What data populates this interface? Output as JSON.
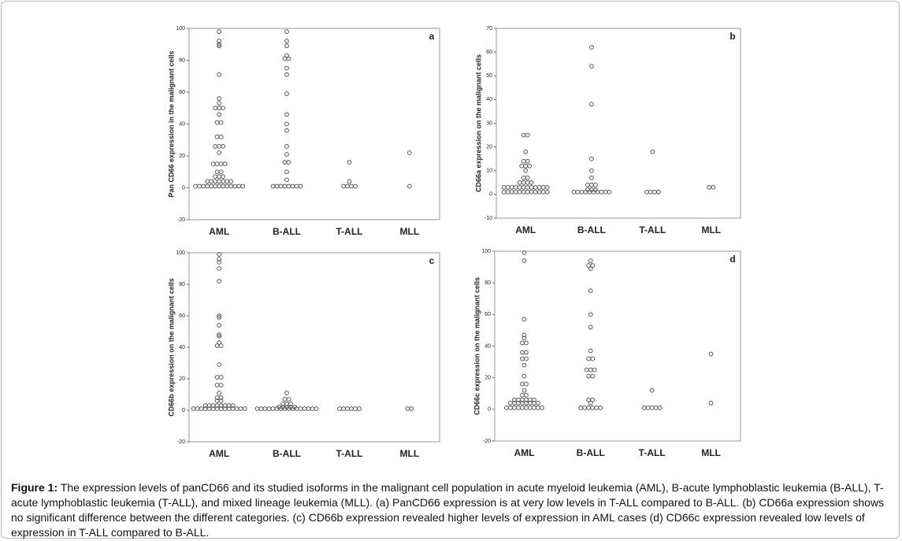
{
  "chart_data": [
    {
      "type": "dotplot",
      "panel": "a",
      "ylabel": "Pan CD66 expression in the malignant cells",
      "categories": [
        "AML",
        "B-ALL",
        "T-ALL",
        "MLL"
      ],
      "color": "#555555",
      "ylim": [
        -20,
        100
      ],
      "yticks": [
        -20,
        0,
        20,
        40,
        60,
        80,
        100
      ],
      "values": [
        [
          98,
          92,
          90,
          89,
          71,
          56,
          53,
          50,
          50,
          50,
          46,
          41,
          41,
          32,
          32,
          26,
          26,
          26,
          22,
          15,
          15,
          15,
          15,
          10,
          10,
          7,
          7,
          7,
          4,
          4,
          4,
          4,
          4,
          4,
          4,
          1,
          1,
          1,
          1,
          1,
          1,
          1,
          1,
          1,
          1,
          1,
          1,
          1
        ],
        [
          98,
          92,
          89,
          83,
          81,
          81,
          75,
          71,
          59,
          46,
          40,
          36,
          26,
          21,
          16,
          16,
          10,
          5,
          1,
          1,
          1,
          1,
          1,
          1,
          1,
          1
        ],
        [
          16,
          4,
          1,
          1,
          1,
          1
        ],
        [
          22,
          1
        ]
      ]
    },
    {
      "type": "dotplot",
      "panel": "b",
      "ylabel": "CD66a expression on the malignant cells",
      "categories": [
        "AML",
        "B-ALL",
        "T-ALL",
        "MLL"
      ],
      "color": "#555555",
      "ylim": [
        -10,
        70
      ],
      "yticks": [
        -10,
        0,
        10,
        20,
        30,
        40,
        50,
        60,
        70
      ],
      "values": [
        [
          25,
          25,
          18,
          14,
          14,
          12,
          12,
          12,
          10,
          7,
          7,
          5,
          5,
          5,
          5,
          3,
          3,
          3,
          3,
          3,
          3,
          3,
          3,
          3,
          3,
          3,
          3,
          1,
          1,
          1,
          1,
          1,
          1,
          1,
          1,
          1,
          1,
          1,
          1
        ],
        [
          62,
          54,
          38,
          15,
          10,
          7,
          4,
          4,
          4,
          2,
          2,
          2,
          1,
          1,
          1,
          1,
          1,
          1,
          1,
          1,
          1,
          1
        ],
        [
          18,
          1,
          1,
          1,
          1
        ],
        [
          3,
          3
        ]
      ]
    },
    {
      "type": "dotplot",
      "panel": "c",
      "ylabel": "CD66b expression on the malignant cells",
      "categories": [
        "AML",
        "B-ALL",
        "T-ALL",
        "MLL"
      ],
      "color": "#555555",
      "ylim": [
        -20,
        100
      ],
      "yticks": [
        -20,
        0,
        20,
        40,
        60,
        80,
        100
      ],
      "values": [
        [
          99,
          96,
          94,
          90,
          82,
          60,
          59,
          54,
          48,
          47,
          43,
          41,
          41,
          29,
          21,
          21,
          16,
          16,
          11,
          8,
          8,
          6,
          6,
          3,
          3,
          3,
          3,
          3,
          3,
          3,
          3,
          1,
          1,
          1,
          1,
          1,
          1,
          1,
          1,
          1,
          1,
          1,
          1,
          1,
          1
        ],
        [
          11,
          7,
          7,
          4,
          4,
          4,
          2,
          2,
          2,
          2,
          2,
          1,
          1,
          1,
          1,
          1,
          1,
          1,
          1,
          1,
          1,
          1,
          1,
          1,
          1,
          1,
          1
        ],
        [
          1,
          1,
          1,
          1,
          1,
          1
        ],
        [
          1,
          1
        ]
      ]
    },
    {
      "type": "dotplot",
      "panel": "d",
      "ylabel": "CD66c expression on the malignant cells",
      "categories": [
        "AML",
        "B-ALL",
        "T-ALL",
        "MLL"
      ],
      "color": "#555555",
      "ylim": [
        -20,
        100
      ],
      "yticks": [
        -20,
        0,
        20,
        40,
        60,
        80,
        100
      ],
      "values": [
        [
          99,
          94,
          57,
          47,
          45,
          42,
          42,
          36,
          36,
          32,
          32,
          28,
          21,
          16,
          16,
          12,
          9,
          9,
          6,
          6,
          6,
          6,
          6,
          6,
          4,
          4,
          4,
          4,
          4,
          4,
          4,
          4,
          1,
          1,
          1,
          1,
          1,
          1,
          1,
          1,
          1,
          1
        ],
        [
          94,
          91,
          91,
          89,
          75,
          60,
          52,
          37,
          32,
          32,
          25,
          25,
          25,
          21,
          21,
          6,
          6,
          4,
          1,
          1,
          1,
          1,
          1,
          1
        ],
        [
          12,
          1,
          1,
          1,
          1,
          1
        ],
        [
          35,
          4
        ]
      ]
    }
  ],
  "caption": {
    "label": "Figure 1:",
    "text": "The expression levels of panCD66 and its studied isoforms in the malignant cell population in acute myeloid leukemia (AML), B-acute lymphoblastic leukemia (B-ALL), T-acute lymphoblastic leukemia (T-ALL), and mixed lineage leukemia (MLL). (a) PanCD66 expression is at very low levels in T-ALL compared to B-ALL. (b) CD66a expression shows no significant difference between the different categories. (c) CD66b expression revealed higher levels of expression in AML cases (d) CD66c expression revealed low levels of expression in T-ALL compared to B-ALL."
  }
}
